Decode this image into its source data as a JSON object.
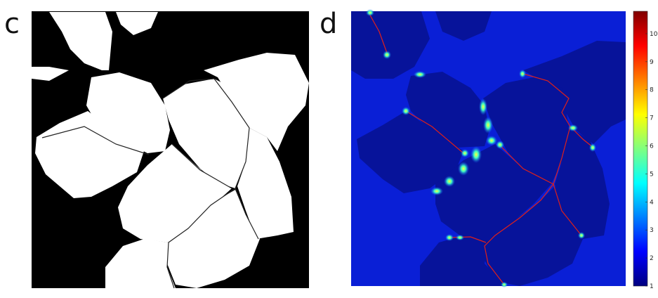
{
  "panels": [
    {
      "label": "c"
    },
    {
      "label": "d"
    }
  ],
  "colorbar": {
    "colormap": "jet",
    "min": 1,
    "max": 10.8,
    "ticks": [
      "1",
      "2",
      "3",
      "4",
      "5",
      "6",
      "7",
      "8",
      "9",
      "10"
    ]
  },
  "colors": {
    "mask_background": "#000000",
    "mask_foreground": "#ffffff",
    "map_background": "#0a1fd6",
    "map_grain": "#07139a",
    "boundary_line": "#e0201a"
  }
}
